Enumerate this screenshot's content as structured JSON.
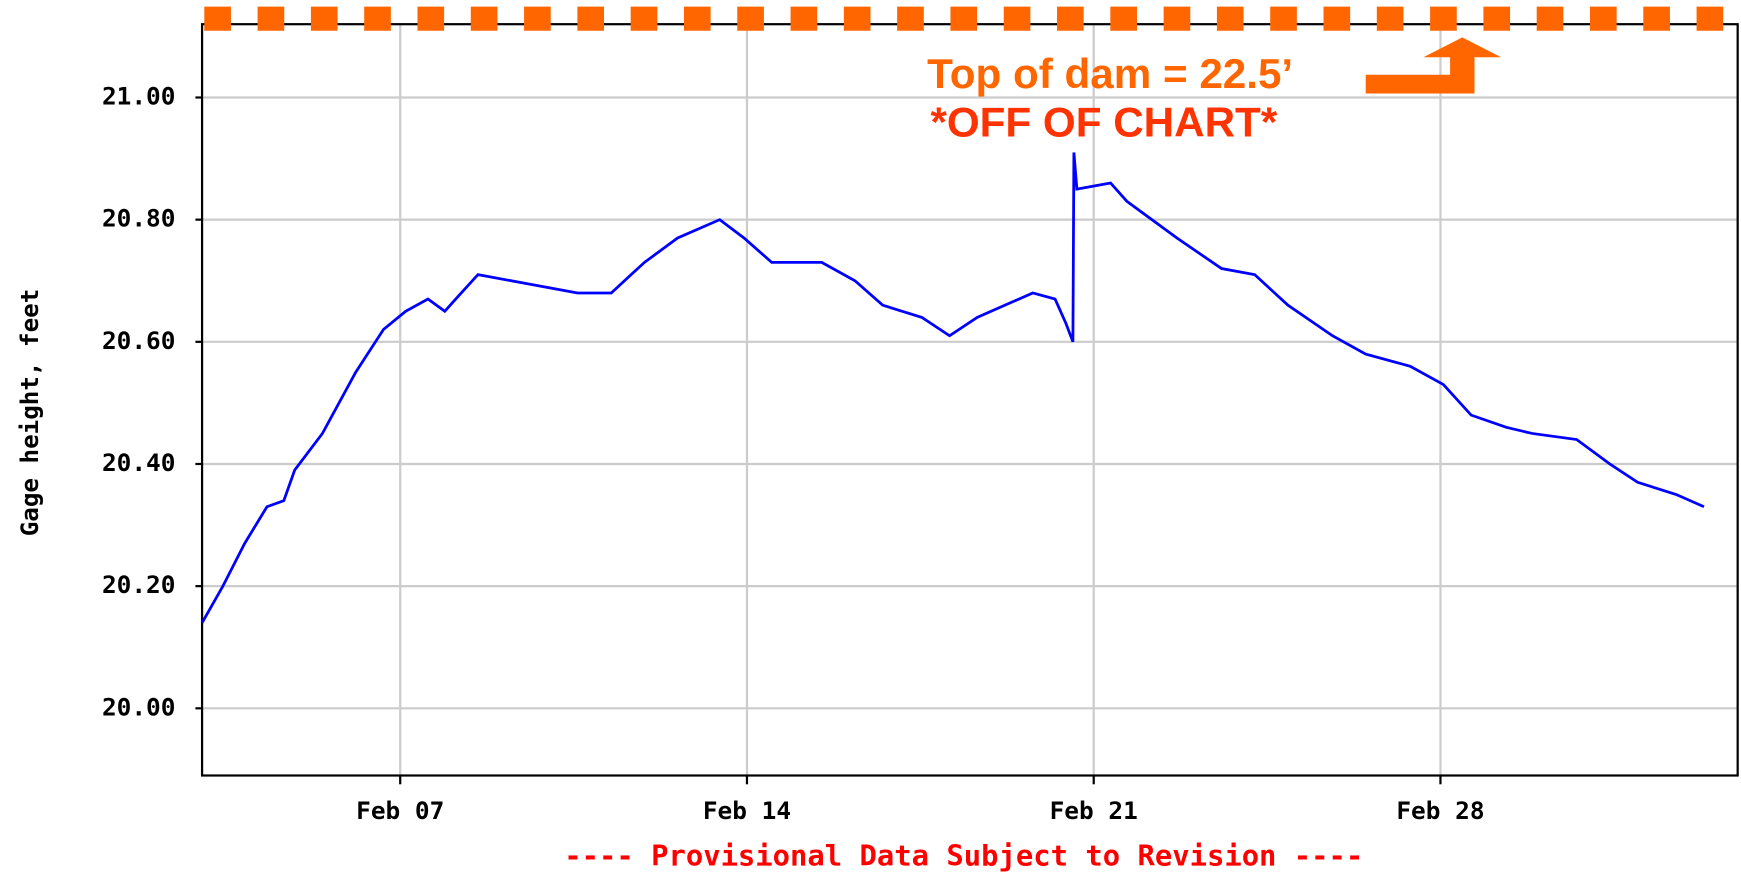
{
  "chart_data": {
    "type": "line",
    "ylabel": "Gage height, feet",
    "annotations": [
      "Top of dam = 22.5’",
      "*OFF OF CHART*"
    ],
    "footer": "---- Provisional Data Subject to Revision ----",
    "xlim": [
      3,
      34
    ],
    "xticks": [
      {
        "value": 7,
        "label": "Feb 07"
      },
      {
        "value": 14,
        "label": "Feb 14"
      },
      {
        "value": 21,
        "label": "Feb 21"
      },
      {
        "value": 28,
        "label": "Feb 28"
      }
    ],
    "ylim": [
      19.89,
      21.12
    ],
    "yticks": [
      {
        "value": 20.0,
        "label": "20.00"
      },
      {
        "value": 20.2,
        "label": "20.20"
      },
      {
        "value": 20.4,
        "label": "20.40"
      },
      {
        "value": 20.6,
        "label": "20.60"
      },
      {
        "value": 20.8,
        "label": "20.80"
      },
      {
        "value": 21.0,
        "label": "21.00"
      }
    ],
    "grid": true,
    "series": [
      {
        "color": "#0000ff",
        "x": [
          3.0,
          3.42,
          3.86,
          4.31,
          4.65,
          4.87,
          5.43,
          6.1,
          6.66,
          7.11,
          7.56,
          7.9,
          8.12,
          8.57,
          9.24,
          9.91,
          10.58,
          11.26,
          11.93,
          12.6,
          13.45,
          13.94,
          14.5,
          15.51,
          16.18,
          16.74,
          17.53,
          18.09,
          18.65,
          19.21,
          19.77,
          20.22,
          20.44,
          20.58,
          20.6,
          20.66,
          21.34,
          21.67,
          22.68,
          23.58,
          24.25,
          24.92,
          25.82,
          26.49,
          27.39,
          28.06,
          28.62,
          29.33,
          29.85,
          30.75,
          31.42,
          31.98,
          32.76,
          33.32
        ],
        "values": [
          20.14,
          20.2,
          20.27,
          20.33,
          20.34,
          20.39,
          20.45,
          20.55,
          20.62,
          20.65,
          20.67,
          20.65,
          20.67,
          20.71,
          20.7,
          20.69,
          20.68,
          20.68,
          20.73,
          20.77,
          20.8,
          20.77,
          20.73,
          20.73,
          20.7,
          20.66,
          20.64,
          20.61,
          20.64,
          20.66,
          20.68,
          20.67,
          20.63,
          20.6,
          20.91,
          20.85,
          20.86,
          20.83,
          20.77,
          20.72,
          20.71,
          20.66,
          20.61,
          20.58,
          20.56,
          20.53,
          20.48,
          20.46,
          20.45,
          20.44,
          20.4,
          20.37,
          20.35,
          20.33
        ]
      }
    ]
  }
}
